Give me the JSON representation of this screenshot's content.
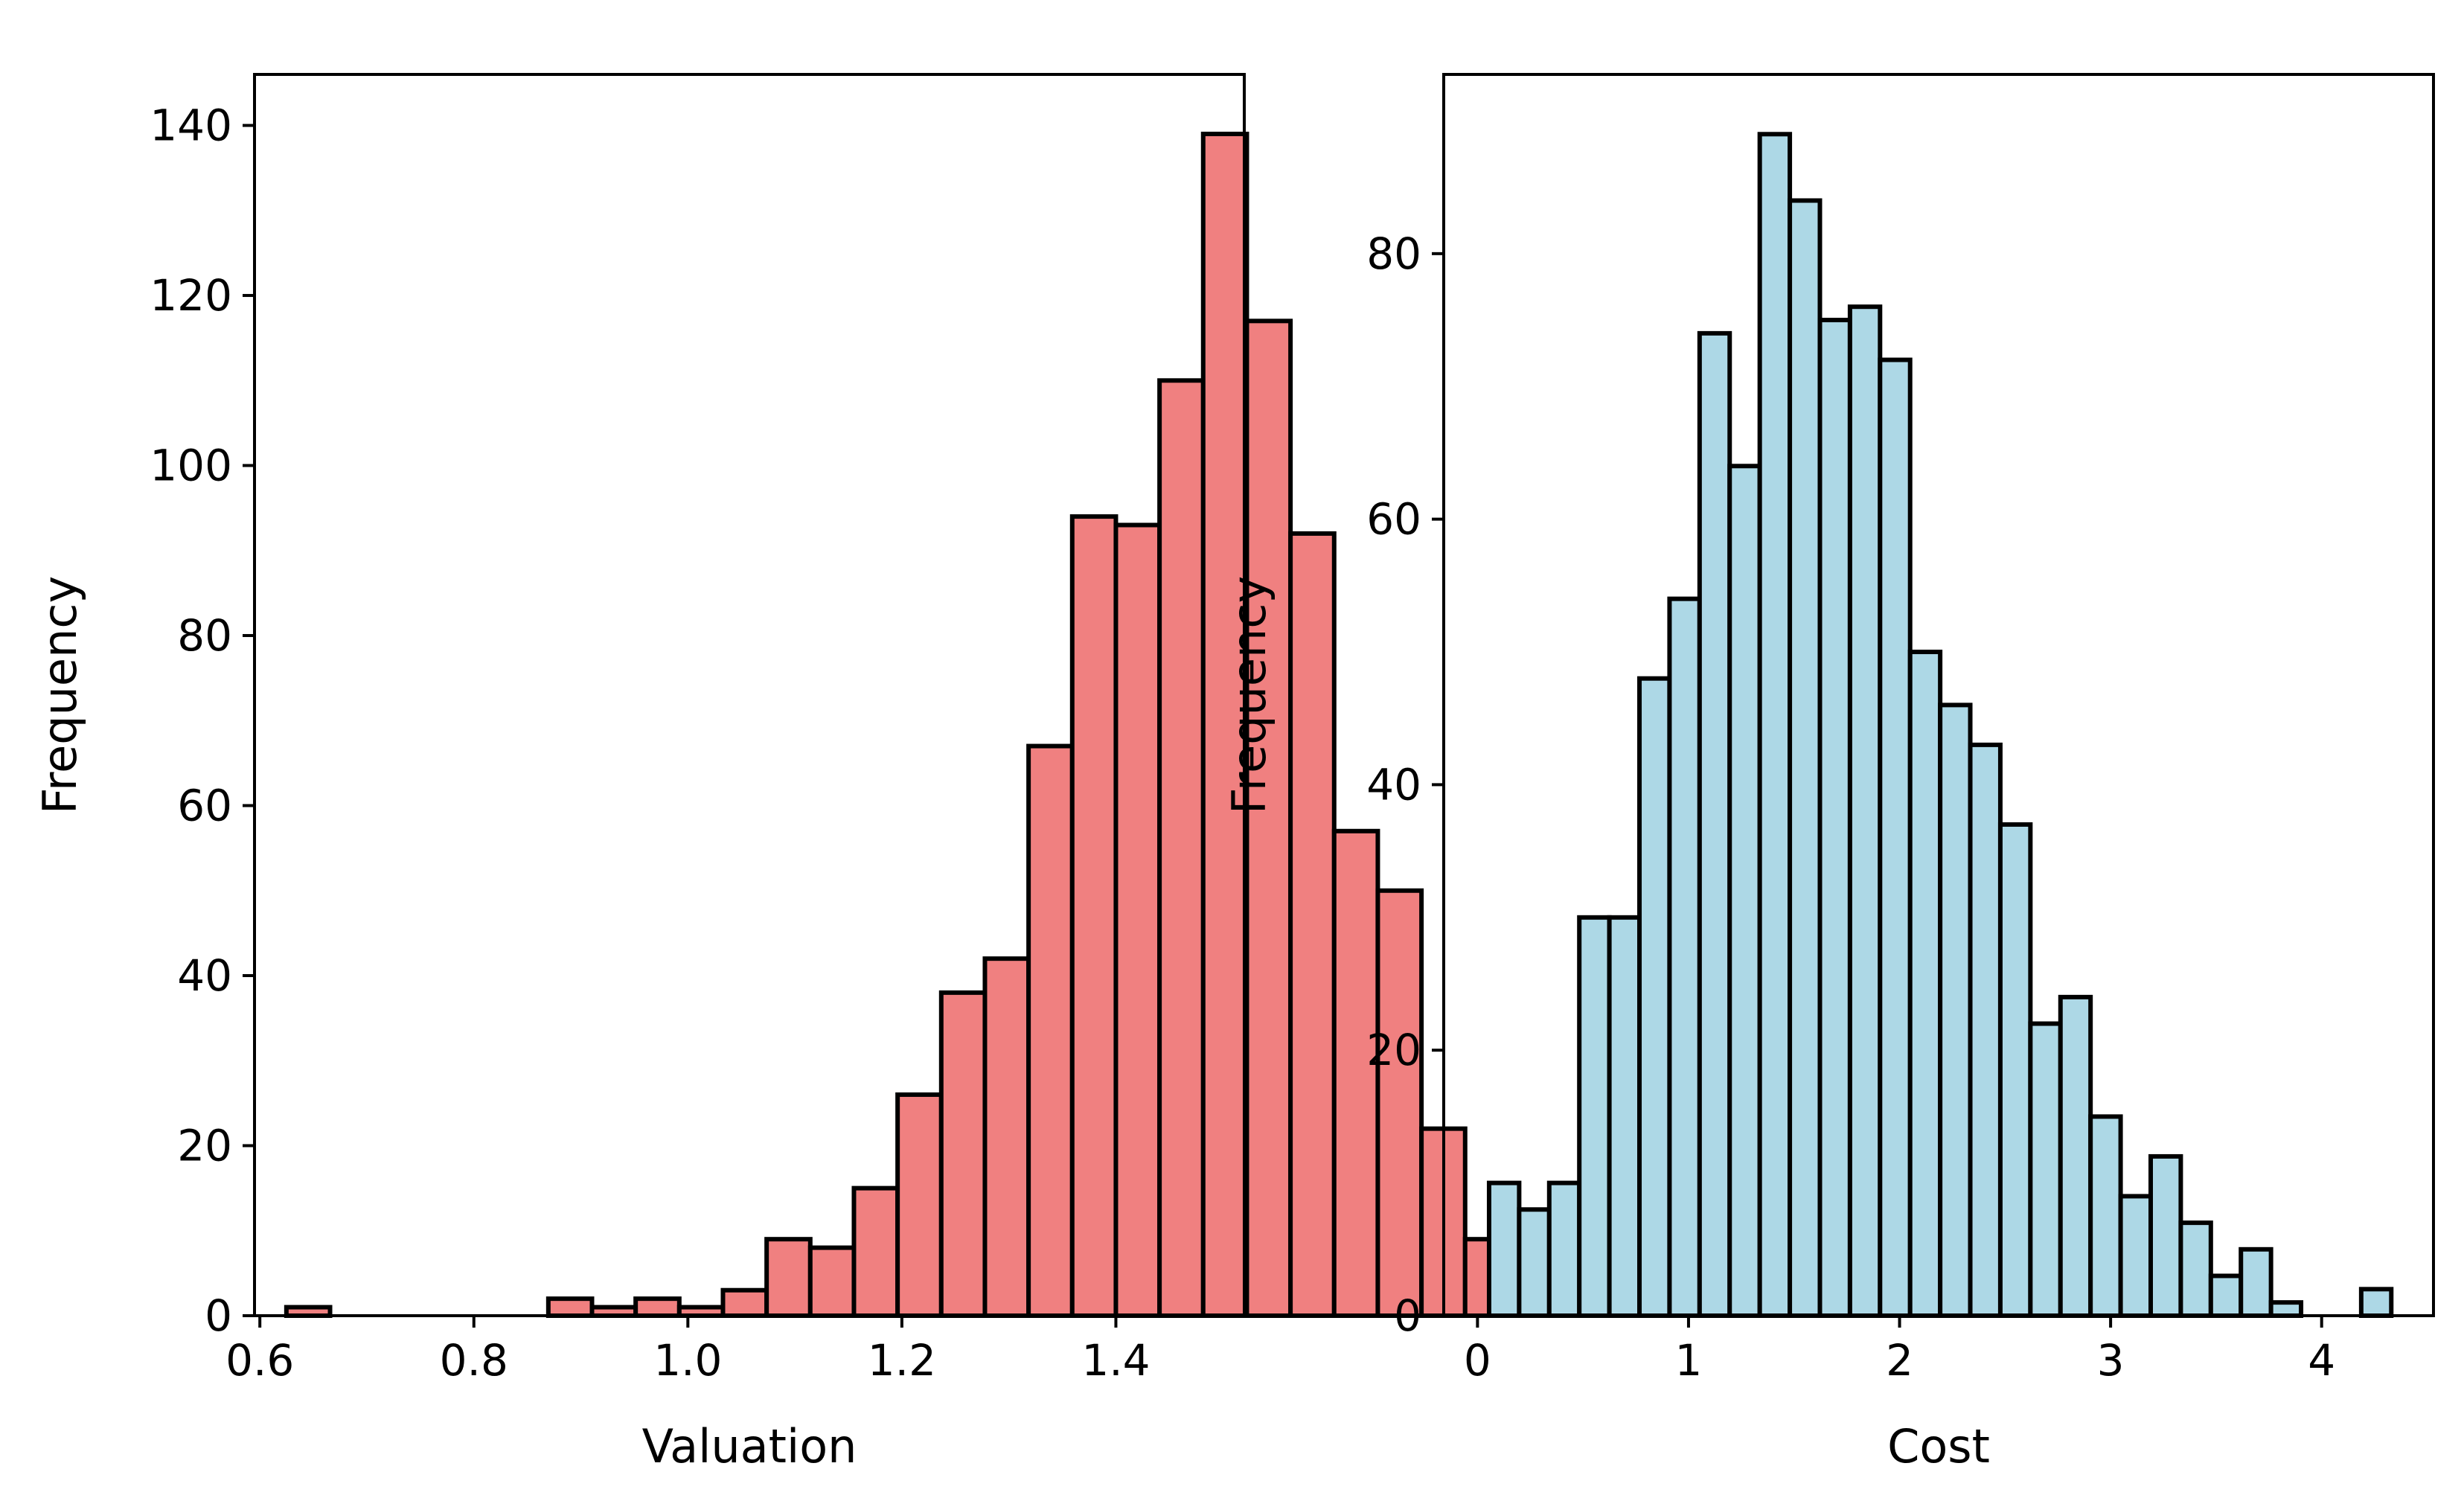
{
  "chart_data": [
    {
      "type": "bar",
      "subtype": "histogram",
      "title": "",
      "xlabel": "Valuation",
      "ylabel": "Frequency",
      "bin_start": 0.6248,
      "bin_width": 0.0408,
      "values": [
        1,
        0,
        0,
        0,
        0,
        0,
        2,
        1,
        2,
        1,
        3,
        9,
        8,
        15,
        26,
        38,
        42,
        67,
        94,
        93,
        110,
        139,
        117,
        92,
        57,
        50,
        22,
        9,
        1,
        1
      ],
      "xlim": [
        0.595,
        1.52
      ],
      "ylim": [
        0,
        146
      ],
      "xticks": [
        0.6,
        0.8,
        1.0,
        1.2,
        1.4
      ],
      "xtick_labels": [
        "0.6",
        "0.8",
        "1.0",
        "1.2",
        "1.4"
      ],
      "yticks": [
        0,
        20,
        40,
        60,
        80,
        100,
        120,
        140
      ],
      "ytick_labels": [
        "0",
        "20",
        "40",
        "60",
        "80",
        "100",
        "120",
        "140"
      ],
      "bar_color": "#f08080",
      "edge_color": "#000000"
    },
    {
      "type": "bar",
      "subtype": "histogram",
      "title": "",
      "xlabel": "Cost",
      "ylabel": "Frequency",
      "bin_start": 0.055,
      "bin_width": 0.1425,
      "values": [
        10,
        8,
        10,
        30,
        30,
        48,
        54,
        74,
        64,
        89,
        84,
        75,
        76,
        72,
        50,
        46,
        43,
        37,
        22,
        24,
        15,
        9,
        12,
        7,
        3,
        5,
        1,
        0,
        0,
        2
      ],
      "xlim": [
        -0.16,
        4.53
      ],
      "ylim": [
        0,
        93.5
      ],
      "xticks": [
        0,
        1,
        2,
        3,
        4
      ],
      "xtick_labels": [
        "0",
        "1",
        "2",
        "3",
        "4"
      ],
      "yticks": [
        0,
        20,
        40,
        60,
        80
      ],
      "ytick_labels": [
        "0",
        "20",
        "40",
        "60",
        "80"
      ],
      "bar_color": "#add8e6",
      "edge_color": "#000000"
    }
  ]
}
